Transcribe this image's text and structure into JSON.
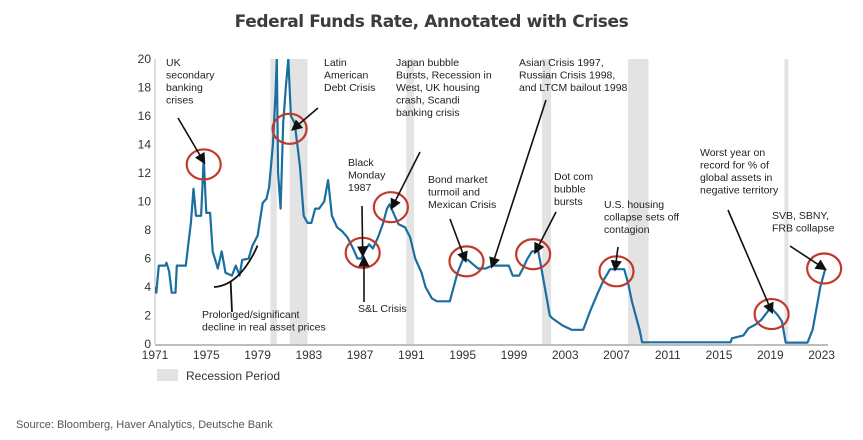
{
  "chart_data": {
    "type": "line",
    "title": "Federal Funds Rate, Annotated with Crises",
    "xlabel": "",
    "ylabel": "",
    "xlim": [
      1971,
      2023.5
    ],
    "ylim": [
      0,
      20
    ],
    "x_ticks": [
      1971,
      1975,
      1979,
      1983,
      1987,
      1991,
      1995,
      1999,
      2003,
      2007,
      2011,
      2015,
      2019,
      2023
    ],
    "y_ticks": [
      0,
      2,
      4,
      6,
      8,
      10,
      12,
      14,
      16,
      18,
      20
    ],
    "grid": false,
    "line_color": "#1a6fa0",
    "recession_color": "#e3e3e3",
    "circle_color": "#c0392b",
    "series": [
      {
        "name": "Federal Funds Rate",
        "points": [
          [
            1971.0,
            4.0
          ],
          [
            1971.1,
            3.6
          ],
          [
            1971.3,
            5.5
          ],
          [
            1971.8,
            5.5
          ],
          [
            1971.9,
            5.7
          ],
          [
            1972.1,
            5.1
          ],
          [
            1972.3,
            3.6
          ],
          [
            1972.6,
            3.6
          ],
          [
            1972.7,
            5.5
          ],
          [
            1973.4,
            5.5
          ],
          [
            1973.6,
            7.0
          ],
          [
            1973.8,
            8.5
          ],
          [
            1974.0,
            10.9
          ],
          [
            1974.2,
            9.0
          ],
          [
            1974.6,
            9.0
          ],
          [
            1974.8,
            13.0
          ],
          [
            1975.0,
            9.2
          ],
          [
            1975.3,
            9.2
          ],
          [
            1975.5,
            6.5
          ],
          [
            1975.9,
            5.3
          ],
          [
            1976.2,
            6.5
          ],
          [
            1976.5,
            5.0
          ],
          [
            1977.0,
            4.8
          ],
          [
            1977.3,
            5.5
          ],
          [
            1977.6,
            4.8
          ],
          [
            1977.8,
            5.9
          ],
          [
            1978.3,
            6.0
          ],
          [
            1978.6,
            6.9
          ],
          [
            1979.0,
            7.6
          ],
          [
            1979.4,
            9.9
          ],
          [
            1979.7,
            10.2
          ],
          [
            1979.9,
            11.0
          ],
          [
            1980.2,
            14.0
          ],
          [
            1980.4,
            17.5
          ],
          [
            1980.5,
            20.0
          ],
          [
            1980.6,
            12.0
          ],
          [
            1980.8,
            9.5
          ],
          [
            1981.0,
            15.5
          ],
          [
            1981.2,
            18.0
          ],
          [
            1981.4,
            20.0
          ],
          [
            1981.6,
            16.0
          ],
          [
            1981.9,
            15.5
          ],
          [
            1982.1,
            14.0
          ],
          [
            1982.3,
            12.5
          ],
          [
            1982.6,
            9.0
          ],
          [
            1982.9,
            8.5
          ],
          [
            1983.2,
            8.5
          ],
          [
            1983.5,
            9.5
          ],
          [
            1983.8,
            9.5
          ],
          [
            1984.2,
            10.0
          ],
          [
            1984.5,
            11.5
          ],
          [
            1984.8,
            9.0
          ],
          [
            1985.2,
            8.2
          ],
          [
            1985.6,
            7.9
          ],
          [
            1986.0,
            7.5
          ],
          [
            1986.4,
            6.8
          ],
          [
            1986.8,
            6.0
          ],
          [
            1987.1,
            6.0
          ],
          [
            1987.4,
            6.6
          ],
          [
            1987.7,
            7.0
          ],
          [
            1988.0,
            6.7
          ],
          [
            1988.4,
            7.5
          ],
          [
            1988.8,
            8.5
          ],
          [
            1989.1,
            9.5
          ],
          [
            1989.3,
            9.8
          ],
          [
            1989.7,
            9.0
          ],
          [
            1990.0,
            8.4
          ],
          [
            1990.5,
            8.2
          ],
          [
            1990.9,
            7.5
          ],
          [
            1991.3,
            6.0
          ],
          [
            1991.8,
            5.0
          ],
          [
            1992.1,
            4.0
          ],
          [
            1992.6,
            3.2
          ],
          [
            1993.0,
            3.0
          ],
          [
            1994.0,
            3.0
          ],
          [
            1994.3,
            4.0
          ],
          [
            1994.6,
            5.0
          ],
          [
            1995.0,
            5.9
          ],
          [
            1995.4,
            5.9
          ],
          [
            1995.8,
            5.6
          ],
          [
            1996.2,
            5.3
          ],
          [
            1996.8,
            5.3
          ],
          [
            1997.3,
            5.5
          ],
          [
            1998.6,
            5.5
          ],
          [
            1998.9,
            4.8
          ],
          [
            1999.4,
            4.8
          ],
          [
            1999.7,
            5.3
          ],
          [
            2000.0,
            5.9
          ],
          [
            2000.4,
            6.5
          ],
          [
            2000.9,
            6.5
          ],
          [
            2001.1,
            5.5
          ],
          [
            2001.5,
            3.5
          ],
          [
            2001.8,
            2.0
          ],
          [
            2002.0,
            1.8
          ],
          [
            2002.8,
            1.3
          ],
          [
            2003.5,
            1.0
          ],
          [
            2004.4,
            1.0
          ],
          [
            2004.9,
            2.2
          ],
          [
            2005.5,
            3.5
          ],
          [
            2006.0,
            4.5
          ],
          [
            2006.5,
            5.25
          ],
          [
            2007.6,
            5.25
          ],
          [
            2007.9,
            4.3
          ],
          [
            2008.2,
            3.0
          ],
          [
            2008.5,
            2.0
          ],
          [
            2008.8,
            1.0
          ],
          [
            2009.0,
            0.12
          ],
          [
            2015.9,
            0.12
          ],
          [
            2016.0,
            0.4
          ],
          [
            2016.9,
            0.6
          ],
          [
            2017.3,
            1.1
          ],
          [
            2017.9,
            1.4
          ],
          [
            2018.3,
            1.7
          ],
          [
            2018.9,
            2.4
          ],
          [
            2019.2,
            2.4
          ],
          [
            2019.6,
            2.0
          ],
          [
            2019.9,
            1.6
          ],
          [
            2020.2,
            0.1
          ],
          [
            2021.9,
            0.1
          ],
          [
            2022.3,
            1.0
          ],
          [
            2022.6,
            2.5
          ],
          [
            2022.9,
            4.0
          ],
          [
            2023.3,
            5.3
          ]
        ]
      }
    ],
    "recession_periods": [
      [
        1980.0,
        1980.5
      ],
      [
        1981.5,
        1982.9
      ],
      [
        1990.6,
        1991.2
      ],
      [
        2001.2,
        2001.9
      ],
      [
        2007.9,
        2009.5
      ],
      [
        2020.1,
        2020.4
      ]
    ],
    "legend": {
      "label": "Recession Period",
      "placement": "bottom-left"
    },
    "annotations": [
      {
        "lines": [
          "UK",
          "secondary",
          "banking",
          "crises"
        ],
        "target": [
          1974.8,
          12.8
        ]
      },
      {
        "lines": [
          "Latin",
          "American",
          "Debt Crisis"
        ],
        "target": [
          1981.8,
          15.1
        ]
      },
      {
        "lines": [
          "Japan bubble",
          "Bursts, Recession in",
          "West, UK housing",
          "crash, Scandi",
          "banking crisis"
        ],
        "target": [
          1989.5,
          9.6
        ]
      },
      {
        "lines": [
          "Asian Crisis 1997,",
          "Russian Crisis 1998,",
          "and LTCM bailout 1998"
        ],
        "target": [
          1997.3,
          5.5
        ]
      },
      {
        "lines": [
          "Black",
          "Monday",
          "1987"
        ],
        "target": [
          1987.2,
          6.3
        ]
      },
      {
        "lines": [
          "Bond market",
          "turmoil and",
          "Mexican Crisis"
        ],
        "target": [
          1995.2,
          5.9
        ]
      },
      {
        "lines": [
          "Dot com",
          "bubble",
          "bursts"
        ],
        "target": [
          2000.7,
          6.5
        ]
      },
      {
        "lines": [
          "U.S. housing",
          "collapse sets off",
          "contagion"
        ],
        "target": [
          2006.9,
          5.3
        ]
      },
      {
        "lines": [
          "Worst year on",
          "record for % of",
          "global assets in",
          "negative territory"
        ],
        "target": [
          2019.1,
          2.3
        ]
      },
      {
        "lines": [
          "SVB, SBNY,",
          "FRB collapse"
        ],
        "target": [
          2023.2,
          5.3
        ]
      },
      {
        "lines": [
          "S&L Crisis"
        ],
        "target": [
          1987.3,
          6.0
        ]
      },
      {
        "lines": [
          "Prolonged/significant",
          "decline in real asset prices"
        ],
        "target": [
          1976.9,
          4.4
        ]
      }
    ],
    "circles": [
      [
        1974.8,
        12.6
      ],
      [
        1981.5,
        15.1
      ],
      [
        1987.2,
        6.4
      ],
      [
        1989.4,
        9.6
      ],
      [
        1995.3,
        5.8
      ],
      [
        2000.5,
        6.3
      ],
      [
        2007.0,
        5.1
      ],
      [
        2019.1,
        2.1
      ],
      [
        2023.2,
        5.3
      ]
    ]
  },
  "source": "Source: Bloomberg, Haver Analytics, Deutsche Bank"
}
